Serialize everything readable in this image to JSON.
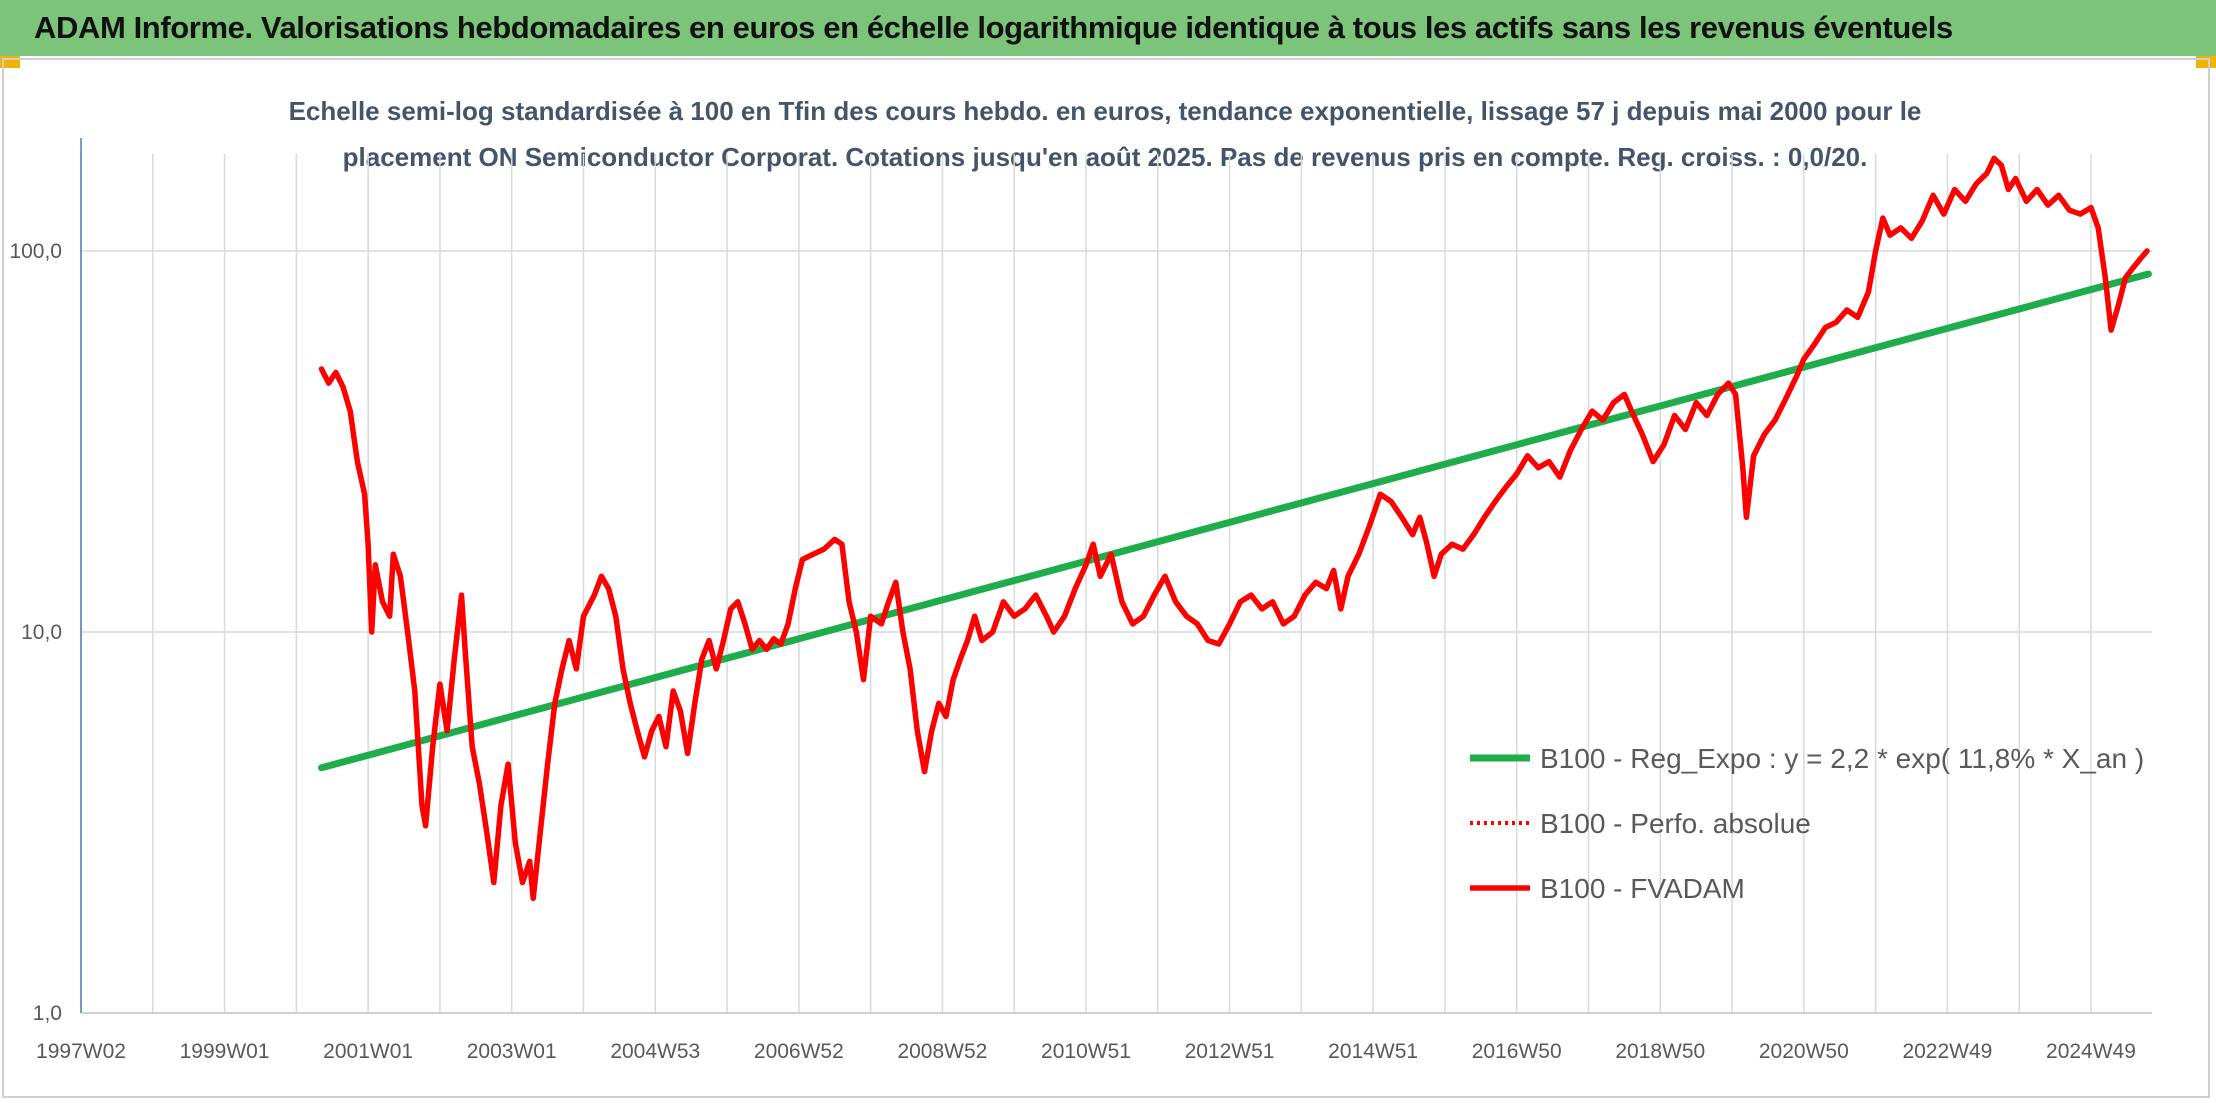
{
  "banner": {
    "title": "ADAM Informe. Valorisations hebdomadaires en euros en échelle logarithmique identique à tous les actifs sans les revenus éventuels"
  },
  "colors": {
    "banner_bg": "#7cc47a",
    "trend": "#1fad4b",
    "series": "#ff0000",
    "gridline": "#d9d9d9",
    "axis_text": "#595959",
    "subtitle_text": "#44546a"
  },
  "chart_data": {
    "type": "line",
    "title_line1": "Echelle semi-log standardisée à 100 en Tfin des cours hebdo. en euros, tendance exponentielle, lissage 57 j depuis mai 2000 pour le",
    "title_line2": "placement ON Semiconductor Corporat. Cotations jusqu'en août 2025. Pas de revenus pris en compte. Reg. croiss. : 0,0/20.",
    "y_scale": "log",
    "ylim": [
      1,
      180
    ],
    "y_ticks": [
      {
        "value": 1,
        "label": "1,0"
      },
      {
        "value": 10,
        "label": "10,0"
      },
      {
        "value": 100,
        "label": "100,0"
      }
    ],
    "xlim": [
      1997.0,
      2025.85
    ],
    "x_ticks": [
      {
        "value": 1997.0,
        "label": "1997W02"
      },
      {
        "value": 1999.0,
        "label": "1999W01"
      },
      {
        "value": 2001.0,
        "label": "2001W01"
      },
      {
        "value": 2003.0,
        "label": "2003W01"
      },
      {
        "value": 2005.0,
        "label": "2004W53"
      },
      {
        "value": 2007.0,
        "label": "2006W52"
      },
      {
        "value": 2009.0,
        "label": "2008W52"
      },
      {
        "value": 2011.0,
        "label": "2010W51"
      },
      {
        "value": 2013.0,
        "label": "2012W51"
      },
      {
        "value": 2015.0,
        "label": "2014W51"
      },
      {
        "value": 2017.0,
        "label": "2016W50"
      },
      {
        "value": 2019.0,
        "label": "2018W50"
      },
      {
        "value": 2021.0,
        "label": "2020W50"
      },
      {
        "value": 2023.0,
        "label": "2022W49"
      },
      {
        "value": 2025.0,
        "label": "2024W49"
      }
    ],
    "legend_position": "right",
    "series": [
      {
        "name": "B100 - Reg_Expo : y = 2,2 * exp( 11,8% *  X_an )",
        "style": "solid-green",
        "points": [
          [
            2000.35,
            4.4
          ],
          [
            2025.8,
            87
          ]
        ]
      },
      {
        "name": "B100 - Perfo. absolue",
        "style": "dotted-red",
        "points": []
      },
      {
        "name": "B100 - FVADAM",
        "style": "solid-red",
        "points": [
          [
            2000.35,
            49
          ],
          [
            2000.45,
            45
          ],
          [
            2000.55,
            48
          ],
          [
            2000.65,
            44
          ],
          [
            2000.75,
            38
          ],
          [
            2000.85,
            28
          ],
          [
            2000.95,
            23
          ],
          [
            2001.0,
            17
          ],
          [
            2001.05,
            10
          ],
          [
            2001.1,
            15
          ],
          [
            2001.2,
            12
          ],
          [
            2001.3,
            11
          ],
          [
            2001.35,
            16
          ],
          [
            2001.45,
            14
          ],
          [
            2001.55,
            10
          ],
          [
            2001.65,
            7
          ],
          [
            2001.75,
            3.5
          ],
          [
            2001.8,
            3.1
          ],
          [
            2001.9,
            5.0
          ],
          [
            2002.0,
            7.3
          ],
          [
            2002.1,
            5.5
          ],
          [
            2002.2,
            8.5
          ],
          [
            2002.3,
            12.5
          ],
          [
            2002.35,
            9
          ],
          [
            2002.45,
            5
          ],
          [
            2002.55,
            4
          ],
          [
            2002.65,
            3.0
          ],
          [
            2002.75,
            2.2
          ],
          [
            2002.85,
            3.5
          ],
          [
            2002.95,
            4.5
          ],
          [
            2003.05,
            2.8
          ],
          [
            2003.15,
            2.2
          ],
          [
            2003.25,
            2.5
          ],
          [
            2003.3,
            2.0
          ],
          [
            2003.4,
            3.0
          ],
          [
            2003.5,
            4.5
          ],
          [
            2003.6,
            6.5
          ],
          [
            2003.7,
            8.0
          ],
          [
            2003.8,
            9.5
          ],
          [
            2003.9,
            8.0
          ],
          [
            2004.0,
            11
          ],
          [
            2004.15,
            12.5
          ],
          [
            2004.25,
            14
          ],
          [
            2004.35,
            13
          ],
          [
            2004.45,
            11
          ],
          [
            2004.55,
            8.0
          ],
          [
            2004.65,
            6.5
          ],
          [
            2004.75,
            5.5
          ],
          [
            2004.85,
            4.7
          ],
          [
            2004.95,
            5.5
          ],
          [
            2005.05,
            6.0
          ],
          [
            2005.15,
            5.0
          ],
          [
            2005.25,
            7.0
          ],
          [
            2005.35,
            6.2
          ],
          [
            2005.45,
            4.8
          ],
          [
            2005.55,
            6.5
          ],
          [
            2005.65,
            8.5
          ],
          [
            2005.75,
            9.5
          ],
          [
            2005.85,
            8.0
          ],
          [
            2005.95,
            9.5
          ],
          [
            2006.05,
            11.5
          ],
          [
            2006.15,
            12
          ],
          [
            2006.25,
            10.5
          ],
          [
            2006.35,
            9.0
          ],
          [
            2006.45,
            9.5
          ],
          [
            2006.55,
            9.0
          ],
          [
            2006.65,
            9.6
          ],
          [
            2006.75,
            9.3
          ],
          [
            2006.85,
            10.5
          ],
          [
            2006.95,
            13
          ],
          [
            2007.05,
            15.5
          ],
          [
            2007.2,
            16
          ],
          [
            2007.35,
            16.5
          ],
          [
            2007.5,
            17.5
          ],
          [
            2007.6,
            17
          ],
          [
            2007.7,
            12
          ],
          [
            2007.8,
            10
          ],
          [
            2007.9,
            7.5
          ],
          [
            2008.0,
            11
          ],
          [
            2008.15,
            10.5
          ],
          [
            2008.25,
            12
          ],
          [
            2008.35,
            13.5
          ],
          [
            2008.45,
            10
          ],
          [
            2008.55,
            8.0
          ],
          [
            2008.65,
            5.5
          ],
          [
            2008.75,
            4.3
          ],
          [
            2008.85,
            5.5
          ],
          [
            2008.95,
            6.5
          ],
          [
            2009.05,
            6.0
          ],
          [
            2009.15,
            7.5
          ],
          [
            2009.25,
            8.5
          ],
          [
            2009.35,
            9.5
          ],
          [
            2009.45,
            11
          ],
          [
            2009.55,
            9.5
          ],
          [
            2009.7,
            10
          ],
          [
            2009.85,
            12
          ],
          [
            2010.0,
            11
          ],
          [
            2010.15,
            11.5
          ],
          [
            2010.3,
            12.5
          ],
          [
            2010.45,
            11
          ],
          [
            2010.55,
            10
          ],
          [
            2010.7,
            11
          ],
          [
            2010.85,
            13
          ],
          [
            2011.0,
            15
          ],
          [
            2011.1,
            17
          ],
          [
            2011.2,
            14
          ],
          [
            2011.35,
            16
          ],
          [
            2011.5,
            12
          ],
          [
            2011.65,
            10.5
          ],
          [
            2011.8,
            11
          ],
          [
            2011.95,
            12.5
          ],
          [
            2012.1,
            14
          ],
          [
            2012.25,
            12
          ],
          [
            2012.4,
            11
          ],
          [
            2012.55,
            10.5
          ],
          [
            2012.7,
            9.5
          ],
          [
            2012.85,
            9.3
          ],
          [
            2013.0,
            10.5
          ],
          [
            2013.15,
            12
          ],
          [
            2013.3,
            12.5
          ],
          [
            2013.45,
            11.5
          ],
          [
            2013.6,
            12
          ],
          [
            2013.75,
            10.5
          ],
          [
            2013.9,
            11
          ],
          [
            2014.05,
            12.5
          ],
          [
            2014.2,
            13.5
          ],
          [
            2014.35,
            13
          ],
          [
            2014.45,
            14.5
          ],
          [
            2014.55,
            11.5
          ],
          [
            2014.65,
            14
          ],
          [
            2014.8,
            16
          ],
          [
            2014.95,
            19
          ],
          [
            2015.1,
            23
          ],
          [
            2015.25,
            22
          ],
          [
            2015.4,
            20
          ],
          [
            2015.55,
            18
          ],
          [
            2015.65,
            20
          ],
          [
            2015.75,
            17
          ],
          [
            2015.85,
            14
          ],
          [
            2015.95,
            16
          ],
          [
            2016.1,
            17
          ],
          [
            2016.25,
            16.5
          ],
          [
            2016.4,
            18
          ],
          [
            2016.55,
            20
          ],
          [
            2016.7,
            22
          ],
          [
            2016.85,
            24
          ],
          [
            2017.0,
            26
          ],
          [
            2017.15,
            29
          ],
          [
            2017.3,
            27
          ],
          [
            2017.45,
            28
          ],
          [
            2017.6,
            25.5
          ],
          [
            2017.75,
            30
          ],
          [
            2017.9,
            34
          ],
          [
            2018.05,
            38
          ],
          [
            2018.2,
            36
          ],
          [
            2018.35,
            40
          ],
          [
            2018.5,
            42
          ],
          [
            2018.6,
            38
          ],
          [
            2018.75,
            33
          ],
          [
            2018.9,
            28
          ],
          [
            2019.05,
            31
          ],
          [
            2019.2,
            37
          ],
          [
            2019.35,
            34
          ],
          [
            2019.5,
            40
          ],
          [
            2019.65,
            37
          ],
          [
            2019.8,
            42
          ],
          [
            2019.95,
            45
          ],
          [
            2020.05,
            42
          ],
          [
            2020.15,
            27
          ],
          [
            2020.2,
            20
          ],
          [
            2020.3,
            29
          ],
          [
            2020.45,
            33
          ],
          [
            2020.6,
            36
          ],
          [
            2020.75,
            41
          ],
          [
            2020.9,
            47
          ],
          [
            2021.0,
            52
          ],
          [
            2021.15,
            57
          ],
          [
            2021.3,
            63
          ],
          [
            2021.45,
            65
          ],
          [
            2021.6,
            70
          ],
          [
            2021.75,
            67
          ],
          [
            2021.9,
            78
          ],
          [
            2022.0,
            100
          ],
          [
            2022.1,
            122
          ],
          [
            2022.2,
            110
          ],
          [
            2022.35,
            115
          ],
          [
            2022.5,
            108
          ],
          [
            2022.65,
            120
          ],
          [
            2022.8,
            140
          ],
          [
            2022.95,
            125
          ],
          [
            2023.1,
            145
          ],
          [
            2023.25,
            135
          ],
          [
            2023.4,
            150
          ],
          [
            2023.55,
            160
          ],
          [
            2023.65,
            175
          ],
          [
            2023.75,
            168
          ],
          [
            2023.85,
            145
          ],
          [
            2023.95,
            155
          ],
          [
            2024.1,
            135
          ],
          [
            2024.25,
            145
          ],
          [
            2024.4,
            132
          ],
          [
            2024.55,
            140
          ],
          [
            2024.7,
            128
          ],
          [
            2024.85,
            125
          ],
          [
            2025.0,
            130
          ],
          [
            2025.1,
            115
          ],
          [
            2025.2,
            85
          ],
          [
            2025.28,
            62
          ],
          [
            2025.38,
            72
          ],
          [
            2025.48,
            85
          ],
          [
            2025.58,
            90
          ],
          [
            2025.68,
            95
          ],
          [
            2025.78,
            100
          ]
        ]
      }
    ]
  }
}
